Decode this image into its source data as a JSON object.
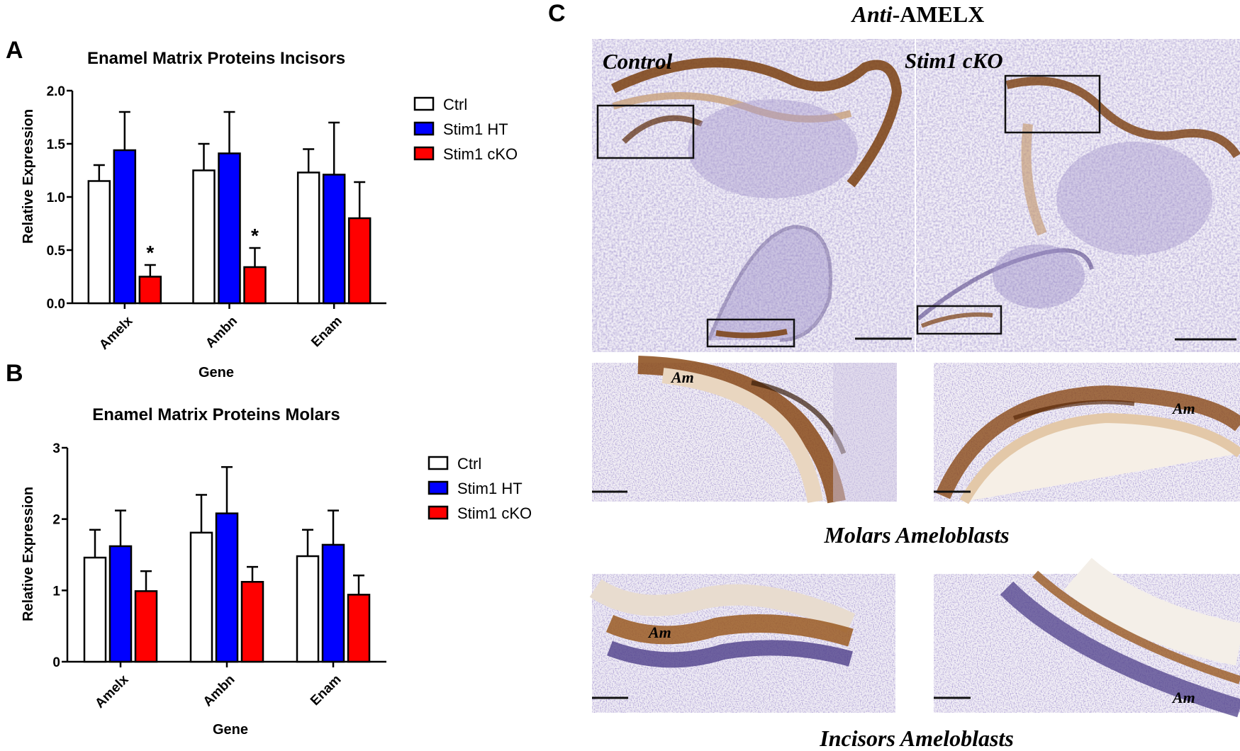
{
  "panels": {
    "A": "A",
    "B": "B",
    "C": "C"
  },
  "panel_c": {
    "title_italic": "Anti",
    "title_rest": "-AMELX",
    "control_label": "Control",
    "cko_label": "Stim1 cKO",
    "am_label": "Am",
    "molars_caption": "Molars Ameloblasts",
    "incisors_caption": "Incisors Ameloblasts"
  },
  "colors": {
    "ctrl": "#ffffff",
    "ht": "#0000ff",
    "cko": "#ff0000",
    "axis": "#000000",
    "stain_brown": "#8a4a12",
    "stain_purple": "#6a5aa8"
  },
  "chart_data": [
    {
      "type": "bar",
      "title": "Enamel Matrix Proteins Incisors",
      "xlabel": "Gene",
      "ylabel": "Relative Expression",
      "categories": [
        "Amelx",
        "Ambn",
        "Enam"
      ],
      "ylim": [
        0,
        2.0
      ],
      "yticks": [
        "0.0",
        "0.5",
        "1.0",
        "1.5",
        "2.0"
      ],
      "ytick_values": [
        0,
        0.5,
        1.0,
        1.5,
        2.0
      ],
      "series": [
        {
          "name": "Ctrl",
          "values": [
            1.15,
            1.25,
            1.23
          ],
          "errors": [
            0.15,
            0.25,
            0.22
          ]
        },
        {
          "name": "Stim1 HT",
          "values": [
            1.44,
            1.41,
            1.21
          ],
          "errors": [
            0.36,
            0.39,
            0.49
          ]
        },
        {
          "name": "Stim1 cKO",
          "values": [
            0.25,
            0.34,
            0.8
          ],
          "errors": [
            0.11,
            0.18,
            0.34
          ]
        }
      ],
      "significance": [
        "*",
        "*",
        ""
      ],
      "legend": "right"
    },
    {
      "type": "bar",
      "title": "Enamel Matrix Proteins Molars",
      "xlabel": "Gene",
      "ylabel": "Relative Expression",
      "categories": [
        "Amelx",
        "Ambn",
        "Enam"
      ],
      "ylim": [
        0,
        3
      ],
      "yticks": [
        "0",
        "1",
        "2",
        "3"
      ],
      "ytick_values": [
        0,
        1,
        2,
        3
      ],
      "series": [
        {
          "name": "Ctrl",
          "values": [
            1.46,
            1.81,
            1.48
          ],
          "errors": [
            0.39,
            0.53,
            0.37
          ]
        },
        {
          "name": "Stim1 HT",
          "values": [
            1.62,
            2.08,
            1.64
          ],
          "errors": [
            0.5,
            0.65,
            0.48
          ]
        },
        {
          "name": "Stim1 cKO",
          "values": [
            0.99,
            1.12,
            0.94
          ],
          "errors": [
            0.28,
            0.21,
            0.27
          ]
        }
      ],
      "significance": [
        "",
        "",
        ""
      ],
      "legend": "right"
    }
  ]
}
